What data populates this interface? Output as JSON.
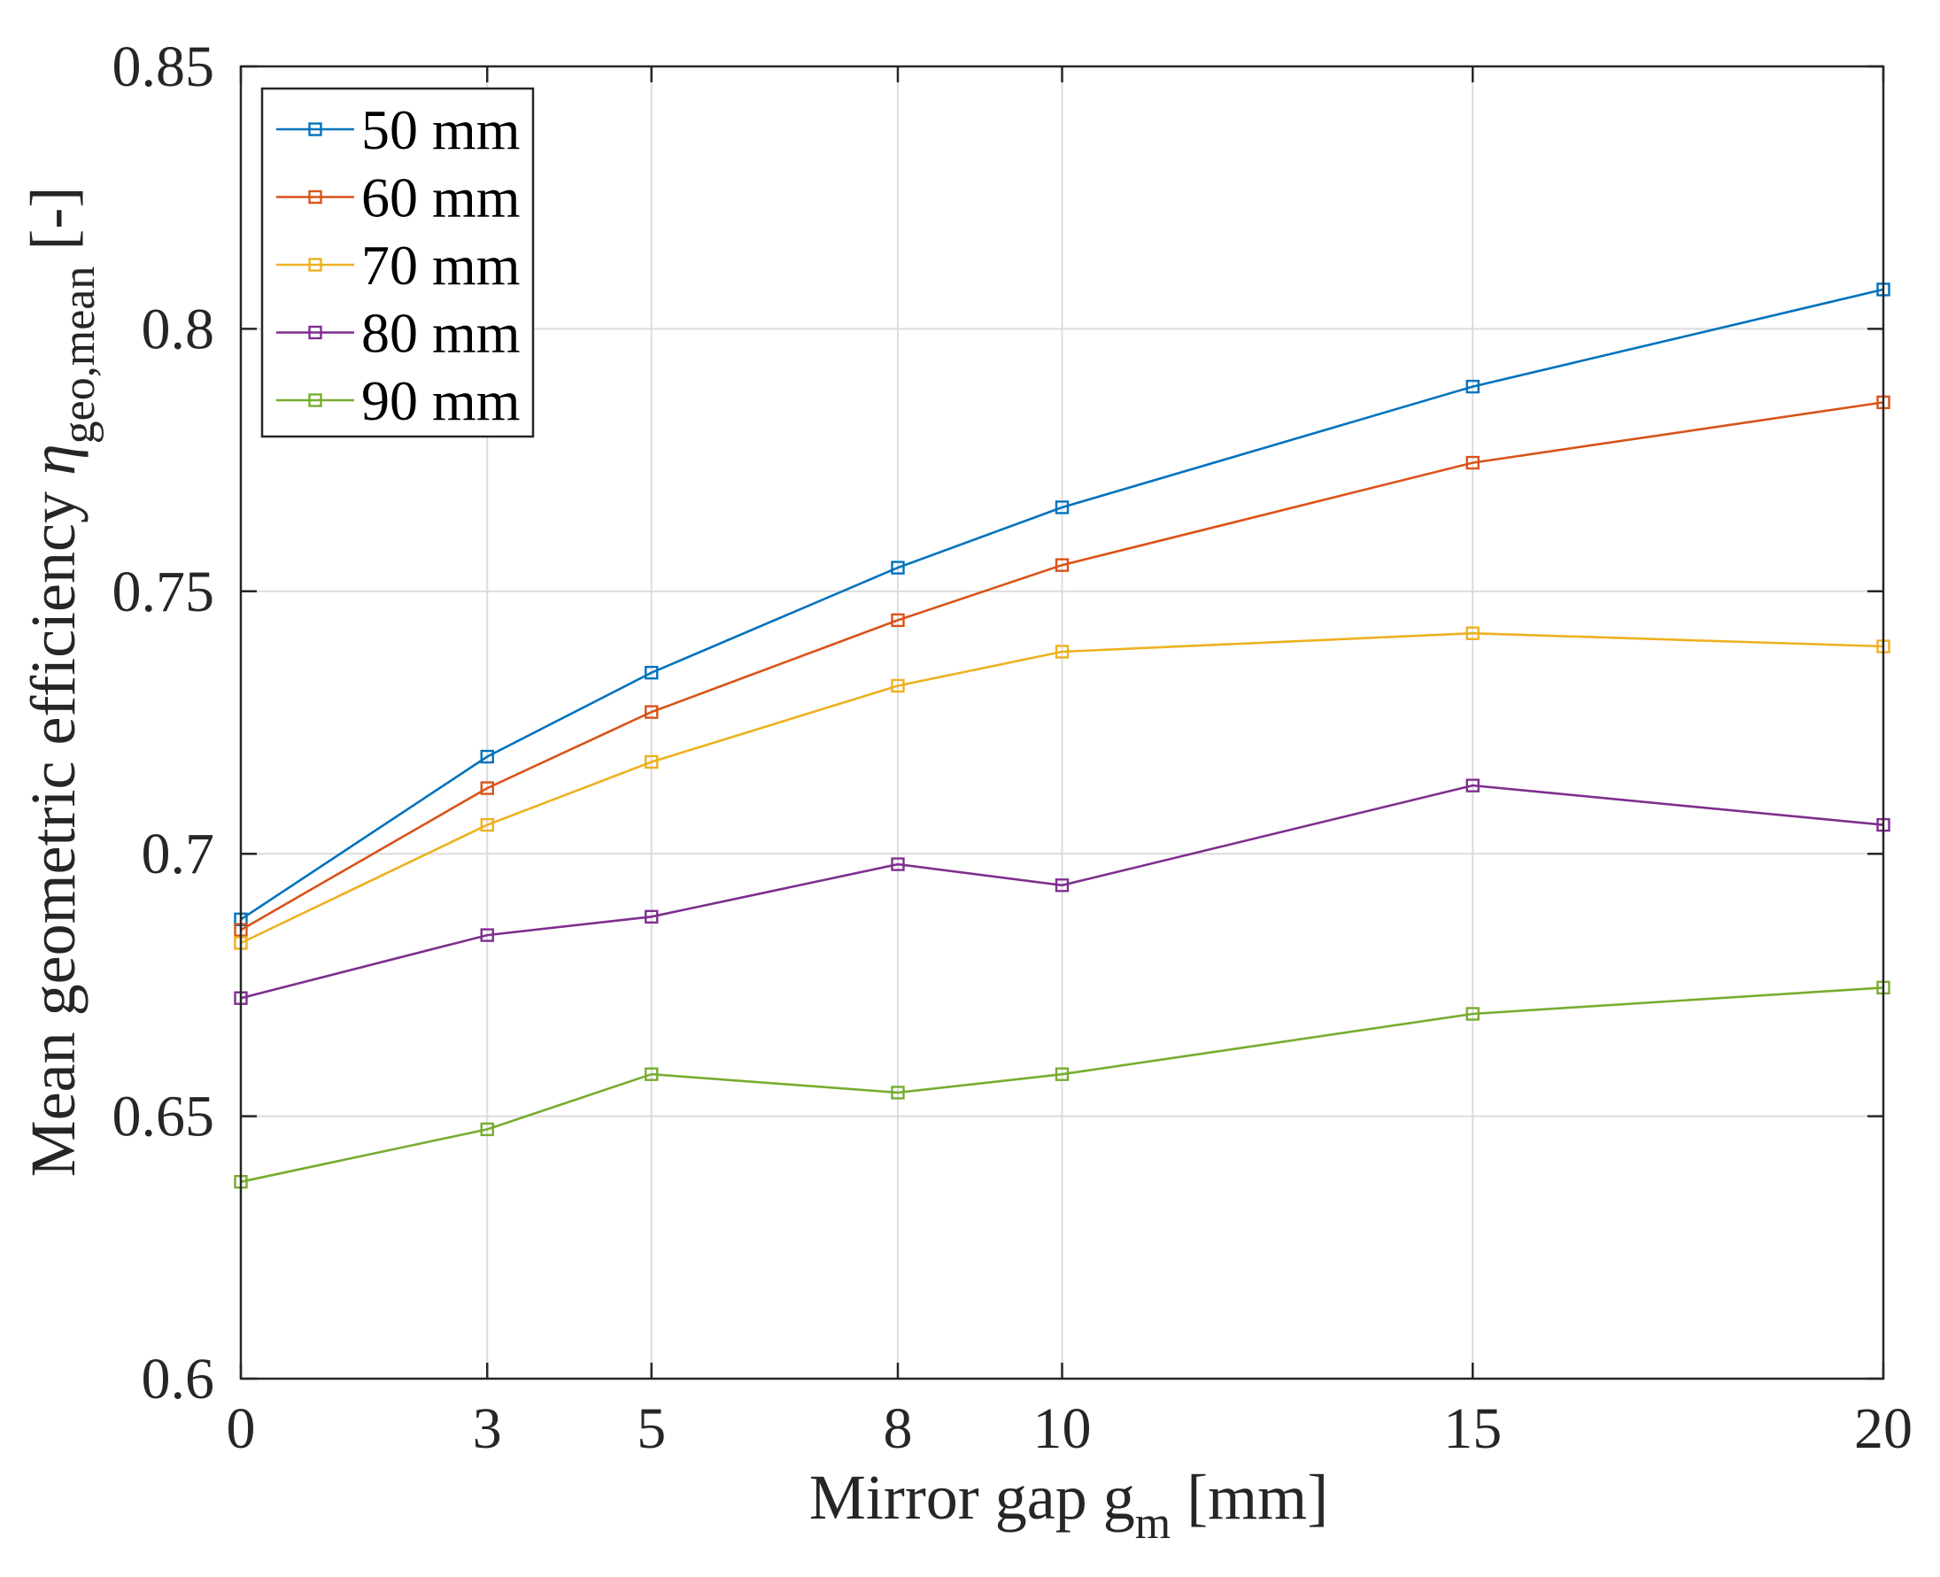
{
  "chart_data": {
    "type": "line",
    "x": [
      0,
      3,
      5,
      8,
      10,
      15,
      20
    ],
    "x_tick_labels": [
      "0",
      "3",
      "5",
      "8",
      "10",
      "15",
      "20"
    ],
    "y_ticks": [
      0.6,
      0.65,
      0.7,
      0.75,
      0.8,
      0.85
    ],
    "y_tick_labels": [
      "0.6",
      "0.65",
      "0.7",
      "0.75",
      "0.8",
      "0.85"
    ],
    "xlim": [
      0,
      20
    ],
    "ylim": [
      0.6,
      0.85
    ],
    "grid": true,
    "marker": "square",
    "legend_position": "top-left",
    "xlabel": {
      "text": "Mirror gap g",
      "sub": "m",
      "unit": " [mm]"
    },
    "ylabel": {
      "text": "Mean geometric efficiency ",
      "symbol": "η",
      "sub": "geo,mean",
      "unit": " [-]"
    },
    "series": [
      {
        "name": "50 mm",
        "color": "#0072BD",
        "values": [
          0.6875,
          0.7185,
          0.7345,
          0.7545,
          0.766,
          0.789,
          0.8075
        ]
      },
      {
        "name": "60 mm",
        "color": "#D95319",
        "values": [
          0.6855,
          0.7125,
          0.727,
          0.7445,
          0.755,
          0.7745,
          0.786
        ]
      },
      {
        "name": "70 mm",
        "color": "#EDB120",
        "values": [
          0.683,
          0.7055,
          0.7175,
          0.732,
          0.7385,
          0.742,
          0.7395
        ]
      },
      {
        "name": "80 mm",
        "color": "#7E2F8E",
        "values": [
          0.6725,
          0.6845,
          0.688,
          0.698,
          0.694,
          0.713,
          0.7055
        ]
      },
      {
        "name": "90 mm",
        "color": "#77AC30",
        "values": [
          0.6375,
          0.6475,
          0.658,
          0.6545,
          0.658,
          0.6695,
          0.6745
        ]
      }
    ]
  }
}
